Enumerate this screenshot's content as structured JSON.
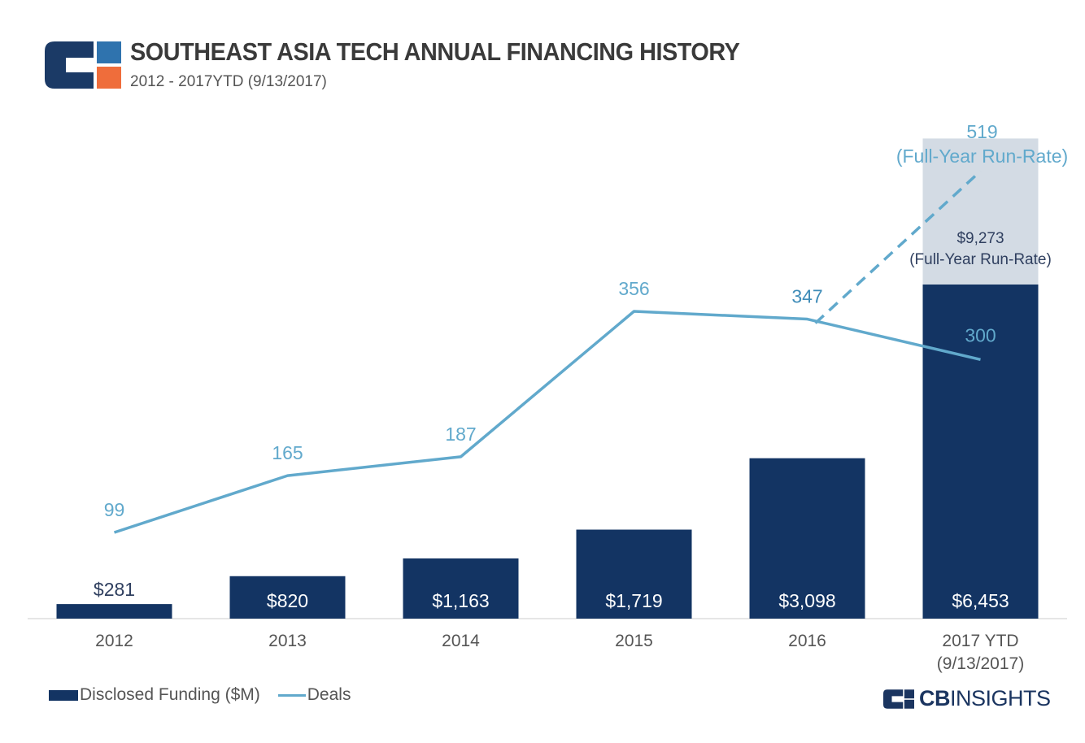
{
  "header": {
    "title": "SOUTHEAST ASIA TECH ANNUAL FINANCING HISTORY",
    "subtitle": "2012 - 2017YTD (9/13/2017)"
  },
  "colors": {
    "bar": "#133463",
    "run_rate_bar": "#d3dbe4",
    "line": "#61a9cc",
    "logo_navy": "#1b3a66",
    "logo_blue": "#2f73ae",
    "logo_orange": "#ef6d3b"
  },
  "chart_data": {
    "type": "bar",
    "categories": [
      "2012",
      "2013",
      "2014",
      "2015",
      "2016",
      "2017 YTD"
    ],
    "category_sublabels": [
      "",
      "",
      "",
      "",
      "",
      "(9/13/2017)"
    ],
    "series": [
      {
        "name": "Disclosed Funding ($M)",
        "type": "bar",
        "values": [
          281,
          820,
          1163,
          1719,
          3098,
          6453
        ],
        "labels": [
          "$281",
          "$820",
          "$1,163",
          "$1,719",
          "$3,098",
          "$6,453"
        ]
      },
      {
        "name": "Deals",
        "type": "line",
        "values": [
          99,
          165,
          187,
          356,
          347,
          300
        ],
        "labels": [
          "99",
          "165",
          "187",
          "356",
          "347",
          "300"
        ]
      }
    ],
    "run_rate": {
      "funding_value": 9273,
      "funding_label": "$9,273",
      "funding_note": "(Full-Year Run-Rate)",
      "deals_value": 519,
      "deals_label": "519",
      "deals_note": "(Full-Year Run-Rate)"
    },
    "grid": false
  },
  "legend": {
    "funding_label": "Disclosed Funding ($M)",
    "deals_label": "Deals"
  },
  "brand": {
    "bold": "CB",
    "rest": "INSIGHTS"
  }
}
